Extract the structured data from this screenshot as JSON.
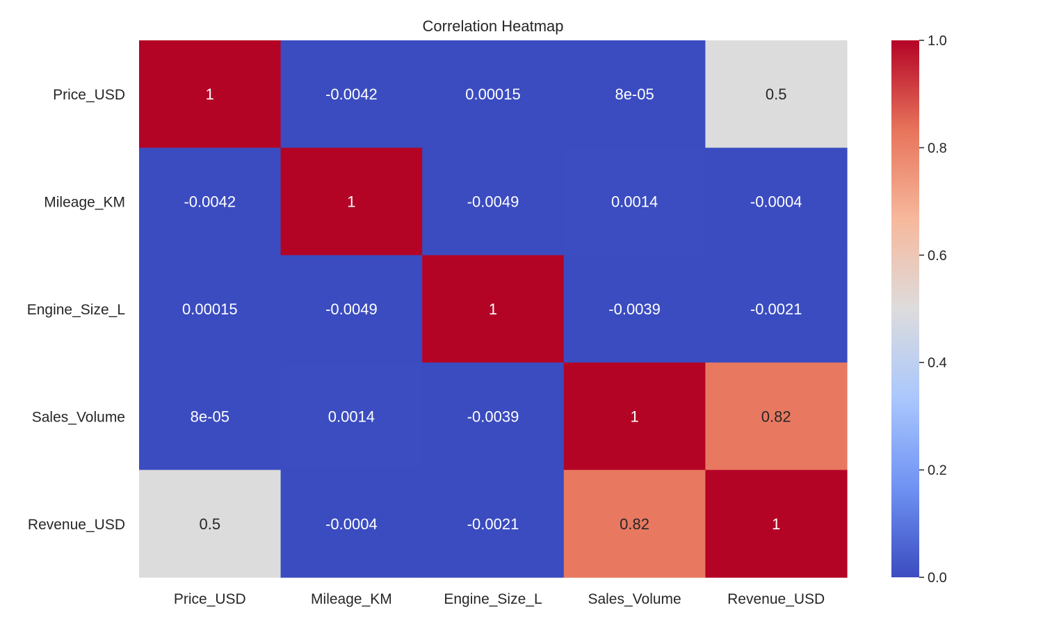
{
  "chart_data": {
    "type": "heatmap",
    "title": "Correlation Heatmap",
    "x_labels": [
      "Price_USD",
      "Mileage_KM",
      "Engine_Size_L",
      "Sales_Volume",
      "Revenue_USD"
    ],
    "y_labels": [
      "Price_USD",
      "Mileage_KM",
      "Engine_Size_L",
      "Sales_Volume",
      "Revenue_USD"
    ],
    "values": [
      [
        1,
        -0.0042,
        0.00015,
        8e-05,
        0.5
      ],
      [
        -0.0042,
        1,
        -0.0049,
        0.0014,
        -0.0004
      ],
      [
        0.00015,
        -0.0049,
        1,
        -0.0039,
        -0.0021
      ],
      [
        8e-05,
        0.0014,
        -0.0039,
        1,
        0.82
      ],
      [
        0.5,
        -0.0004,
        -0.0021,
        0.82,
        1
      ]
    ],
    "annotations": [
      [
        "1",
        "-0.0042",
        "0.00015",
        "8e-05",
        "0.5"
      ],
      [
        "-0.0042",
        "1",
        "-0.0049",
        "0.0014",
        "-0.0004"
      ],
      [
        "0.00015",
        "-0.0049",
        "1",
        "-0.0039",
        "-0.0021"
      ],
      [
        "8e-05",
        "0.0014",
        "-0.0039",
        "1",
        "0.82"
      ],
      [
        "0.5",
        "-0.0004",
        "-0.0021",
        "0.82",
        "1"
      ]
    ],
    "colormap": "coolwarm",
    "color_range": [
      0.0,
      1.0
    ],
    "colorbar_ticks": [
      "0.0",
      "0.2",
      "0.4",
      "0.6",
      "0.8",
      "1.0"
    ],
    "colorbar_placement": "right",
    "colorbar_stops": [
      "#3b4cc0",
      "#6f92f3",
      "#aac7fd",
      "#dddcdc",
      "#f7b89c",
      "#e7745b",
      "#b40426"
    ],
    "grid": false
  }
}
